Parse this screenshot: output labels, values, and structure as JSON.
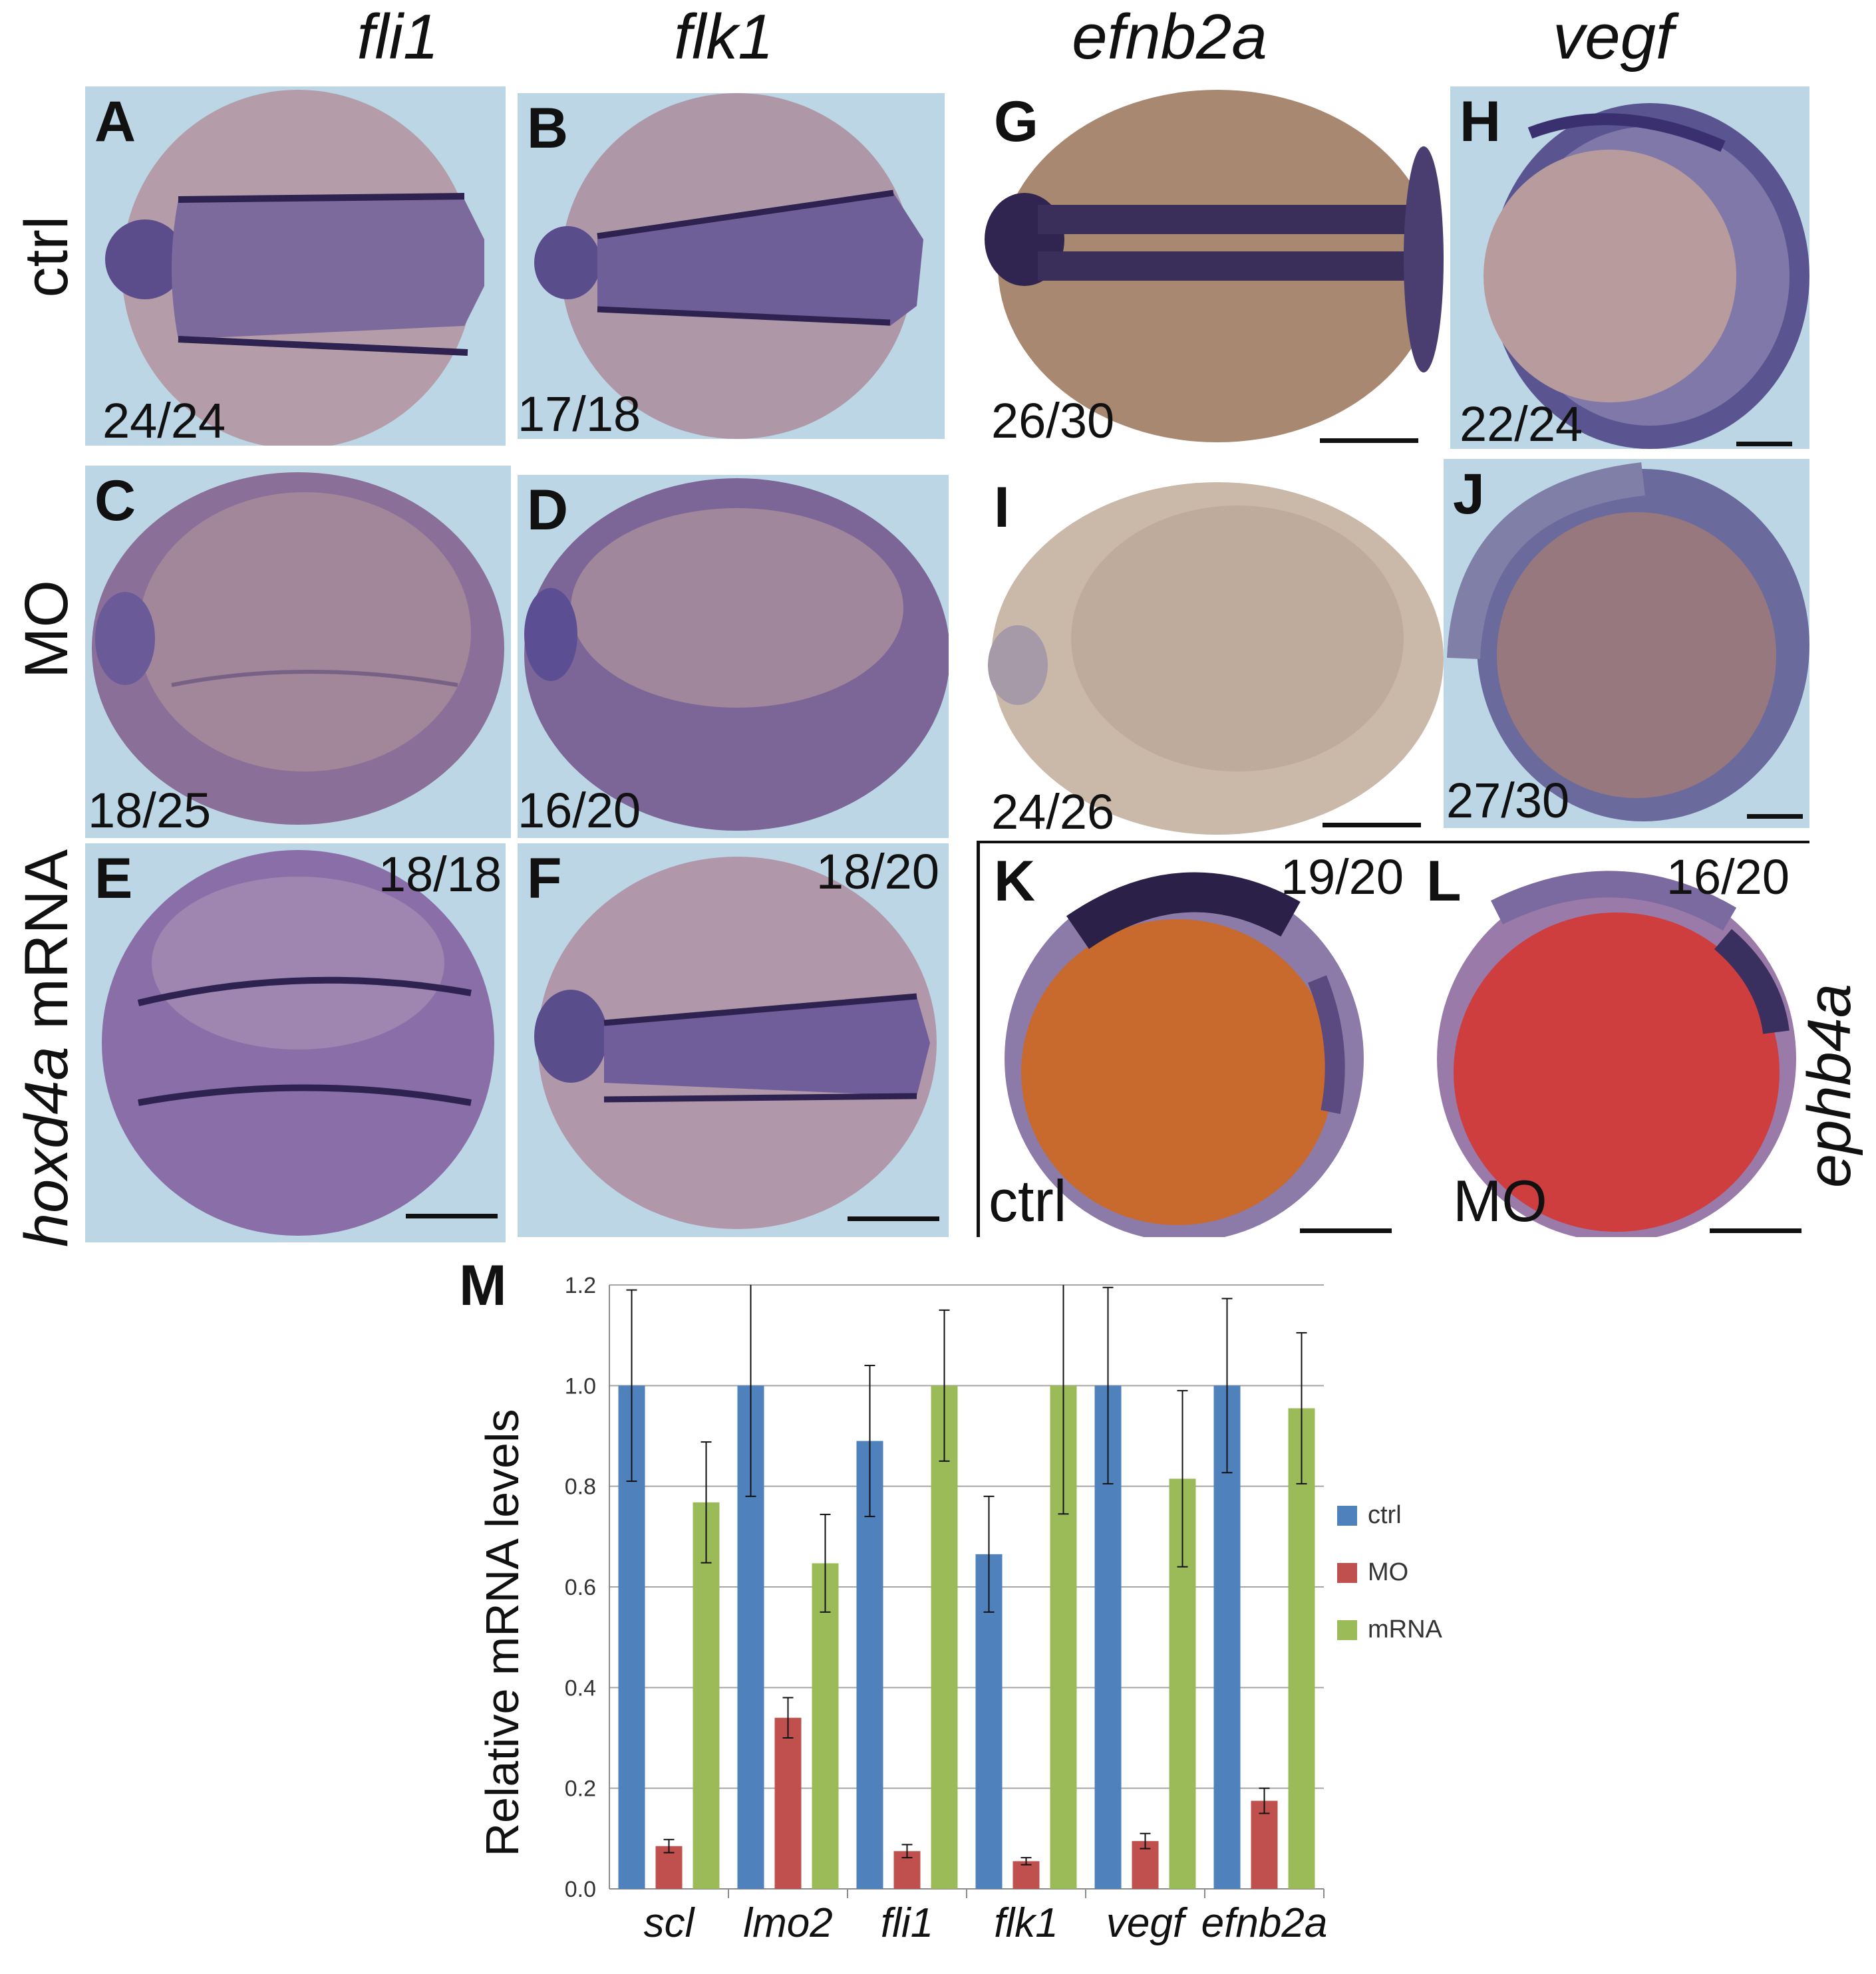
{
  "figure": {
    "column_headers": [
      "fli1",
      "flk1",
      "efnb2a",
      "vegf"
    ],
    "row_labels": {
      "ctrl": "ctrl",
      "mo": "MO",
      "mrna_gene": "hoxd4a",
      "mrna_suffix": " mRNA"
    },
    "side_label": "ephb4a",
    "panels": [
      {
        "letter": "A",
        "count": "24/24"
      },
      {
        "letter": "B",
        "count": "17/18"
      },
      {
        "letter": "G",
        "count": "26/30"
      },
      {
        "letter": "H",
        "count": "22/24"
      },
      {
        "letter": "C",
        "count": "18/25"
      },
      {
        "letter": "D",
        "count": "16/20"
      },
      {
        "letter": "I",
        "count": "24/26"
      },
      {
        "letter": "J",
        "count": "27/30"
      },
      {
        "letter": "E",
        "count": "18/18"
      },
      {
        "letter": "F",
        "count": "18/20"
      },
      {
        "letter": "K",
        "count": "19/20",
        "caption": "ctrl"
      },
      {
        "letter": "L",
        "count": "16/20",
        "caption": "MO"
      }
    ],
    "chart_panel_letter": "M"
  },
  "chart_data": {
    "type": "bar",
    "categories": [
      "scl",
      "lmo2",
      "fli1",
      "flk1",
      "vegf",
      "efnb2a"
    ],
    "ylabel": "Relative mRNA levels",
    "xlabel": "",
    "ylim": [
      0.0,
      1.2
    ],
    "yticks": [
      "0.0",
      "0.2",
      "0.4",
      "0.6",
      "0.8",
      "1.0",
      "1.2"
    ],
    "grid": true,
    "legend_position": "right",
    "series": [
      {
        "name": "ctrl",
        "color": "#4f81bd",
        "values": [
          1.0,
          1.0,
          0.89,
          0.665,
          1.0,
          1.0
        ],
        "errors": [
          0.19,
          0.22,
          0.15,
          0.115,
          0.195,
          0.173
        ]
      },
      {
        "name": "MO",
        "color": "#c0504d",
        "values": [
          0.085,
          0.34,
          0.075,
          0.055,
          0.095,
          0.175
        ],
        "errors": [
          0.013,
          0.04,
          0.013,
          0.007,
          0.015,
          0.025
        ]
      },
      {
        "name": "mRNA",
        "color": "#9bbb59",
        "values": [
          0.768,
          0.647,
          1.0,
          1.0,
          0.815,
          0.955
        ],
        "errors": [
          0.12,
          0.097,
          0.15,
          0.255,
          0.175,
          0.15
        ]
      }
    ]
  }
}
